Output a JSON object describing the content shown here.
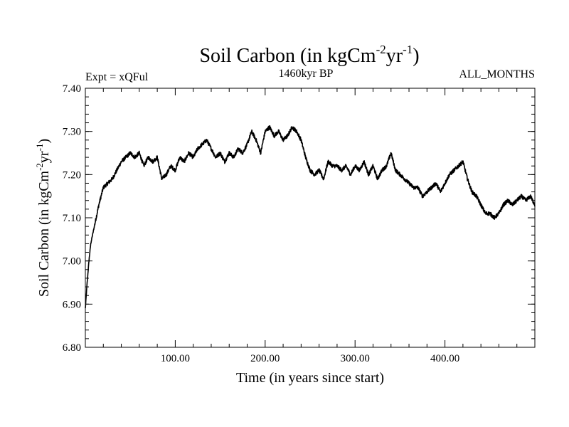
{
  "chart_data": {
    "type": "line",
    "title": {
      "main": "Soil Carbon (in kgCm",
      "sup1": "-2",
      "mid": "yr",
      "sup2": "-1",
      "end": ")"
    },
    "subtitle_left": "Expt = xQFul",
    "subtitle_center": "1460kyr BP",
    "subtitle_right": "ALL_MONTHS",
    "xlabel": "Time (in years since start)",
    "ylabel": {
      "main": "Soil Carbon (in kgCm",
      "sup1": "-2",
      "mid": "yr",
      "sup2": "-1",
      "end": ")"
    },
    "xlim": [
      0,
      500
    ],
    "ylim": [
      6.8,
      7.4
    ],
    "x_ticks": [
      {
        "value": 100,
        "label": "100.00"
      },
      {
        "value": 200,
        "label": "200.00"
      },
      {
        "value": 300,
        "label": "300.00"
      },
      {
        "value": 400,
        "label": "400.00"
      }
    ],
    "y_ticks": [
      {
        "value": 6.8,
        "label": "6.80"
      },
      {
        "value": 6.9,
        "label": "6.90"
      },
      {
        "value": 7.0,
        "label": "7.00"
      },
      {
        "value": 7.1,
        "label": "7.10"
      },
      {
        "value": 7.2,
        "label": "7.20"
      },
      {
        "value": 7.3,
        "label": "7.30"
      },
      {
        "value": 7.4,
        "label": "7.40"
      }
    ],
    "grid": false,
    "series": [
      {
        "name": "Soil Carbon",
        "color": "#000000",
        "x": [
          0,
          2,
          4,
          6,
          8,
          10,
          15,
          20,
          25,
          30,
          35,
          40,
          45,
          50,
          55,
          60,
          65,
          70,
          75,
          80,
          85,
          90,
          95,
          100,
          105,
          110,
          115,
          120,
          125,
          130,
          135,
          140,
          145,
          150,
          155,
          160,
          165,
          170,
          175,
          180,
          185,
          190,
          195,
          200,
          205,
          210,
          215,
          220,
          225,
          230,
          235,
          240,
          245,
          250,
          255,
          260,
          265,
          270,
          275,
          280,
          285,
          290,
          295,
          300,
          305,
          310,
          315,
          320,
          325,
          330,
          335,
          340,
          345,
          350,
          355,
          360,
          365,
          370,
          375,
          380,
          385,
          390,
          395,
          400,
          405,
          410,
          415,
          420,
          425,
          430,
          435,
          440,
          445,
          450,
          455,
          460,
          465,
          470,
          475,
          480,
          485,
          490,
          495,
          500
        ],
        "y": [
          6.89,
          6.95,
          7.0,
          7.04,
          7.06,
          7.08,
          7.13,
          7.17,
          7.18,
          7.19,
          7.21,
          7.23,
          7.24,
          7.25,
          7.24,
          7.25,
          7.22,
          7.24,
          7.23,
          7.24,
          7.19,
          7.2,
          7.22,
          7.21,
          7.24,
          7.23,
          7.25,
          7.24,
          7.26,
          7.27,
          7.28,
          7.26,
          7.24,
          7.25,
          7.23,
          7.25,
          7.24,
          7.26,
          7.25,
          7.27,
          7.3,
          7.28,
          7.25,
          7.3,
          7.31,
          7.29,
          7.3,
          7.28,
          7.29,
          7.31,
          7.3,
          7.28,
          7.24,
          7.21,
          7.2,
          7.21,
          7.19,
          7.23,
          7.22,
          7.22,
          7.21,
          7.22,
          7.2,
          7.22,
          7.21,
          7.23,
          7.2,
          7.22,
          7.19,
          7.21,
          7.22,
          7.25,
          7.21,
          7.2,
          7.19,
          7.18,
          7.17,
          7.17,
          7.15,
          7.16,
          7.17,
          7.18,
          7.16,
          7.18,
          7.2,
          7.21,
          7.22,
          7.23,
          7.19,
          7.16,
          7.15,
          7.13,
          7.11,
          7.11,
          7.1,
          7.11,
          7.13,
          7.14,
          7.13,
          7.14,
          7.15,
          7.14,
          7.15,
          7.13
        ]
      }
    ]
  }
}
